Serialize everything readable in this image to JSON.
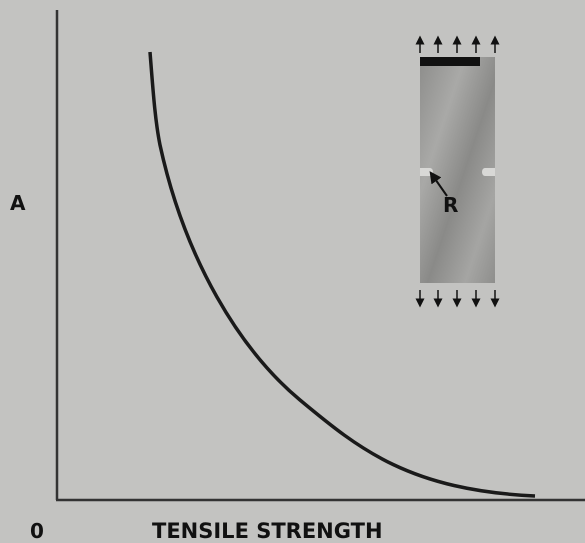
{
  "axes": {
    "y_label": "A",
    "origin_label": "0",
    "x_label": "TENSILE STRENGTH"
  },
  "specimen": {
    "label": "R"
  }
}
